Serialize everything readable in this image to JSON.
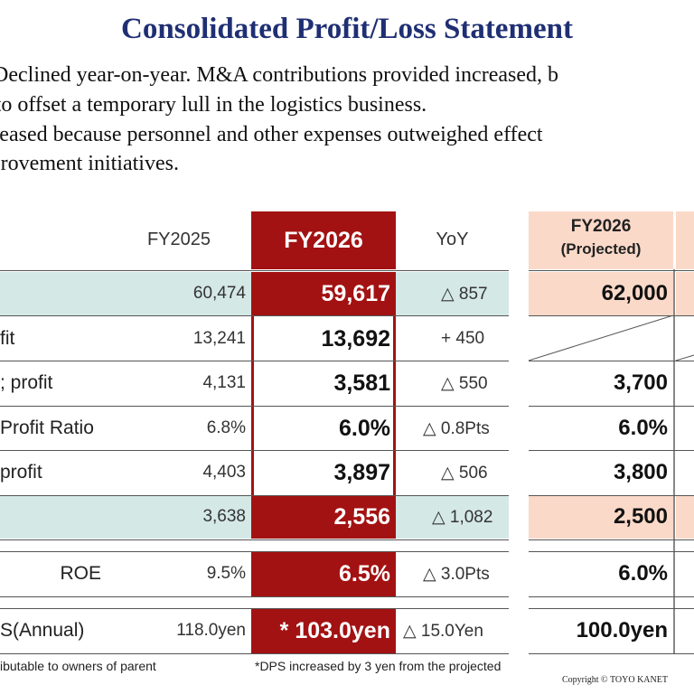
{
  "title": "Consolidated Profit/Loss Statement",
  "summary": {
    "line1": "s: Declined year-on-year. M&A contributions provided increased, b",
    "line2": "nt to offset a temporary lull in the logistics business.",
    "line3": "ecreased because personnel and other expenses outweighed effect",
    "line4": "mprovement initiatives."
  },
  "columns": {
    "fy2025": "FY2025",
    "fy2026": "FY2026",
    "yoy": "YoY",
    "projected_year": "FY2026",
    "projected_label": "(Projected)"
  },
  "rows": [
    {
      "label": "",
      "fy2025": "60,474",
      "fy2026": "59,617",
      "yoy": "△ 857",
      "projected": "62,000"
    },
    {
      "label": "fit",
      "fy2025": "13,241",
      "fy2026": "13,692",
      "yoy": "+ 450",
      "projected": ""
    },
    {
      "label": "; profit",
      "fy2025": "4,131",
      "fy2026": "3,581",
      "yoy": "△ 550",
      "projected": "3,700"
    },
    {
      "label": "Profit Ratio",
      "fy2025": "6.8%",
      "fy2026": "6.0%",
      "yoy": "△ 0.8Pts",
      "projected": "6.0%"
    },
    {
      "label": "profit",
      "fy2025": "4,403",
      "fy2026": "3,897",
      "yoy": "△ 506",
      "projected": "3,800"
    },
    {
      "label": "",
      "fy2025": "3,638",
      "fy2026": "2,556",
      "yoy": "△ 1,082",
      "projected": "2,500"
    },
    {
      "label": "ROE",
      "fy2025": "9.5%",
      "fy2026": "6.5%",
      "yoy": "△ 3.0Pts",
      "projected": "6.0%"
    },
    {
      "label": "S(Annual)",
      "fy2025": "118.0yen",
      "fy2026": "* 103.0yen",
      "yoy": "△ 15.0Yen",
      "projected": "100.0yen"
    }
  ],
  "footnotes": {
    "left": "ibutable to owners of parent",
    "middle": "*DPS increased by 3 yen from the projected",
    "copyright": "Copyright © TOYO KANET"
  },
  "colors": {
    "title": "#1f2f73",
    "fy2026_fill": "#a31212",
    "teal_fill": "#d4e8e6",
    "projected_fill": "#fbd9c9"
  }
}
